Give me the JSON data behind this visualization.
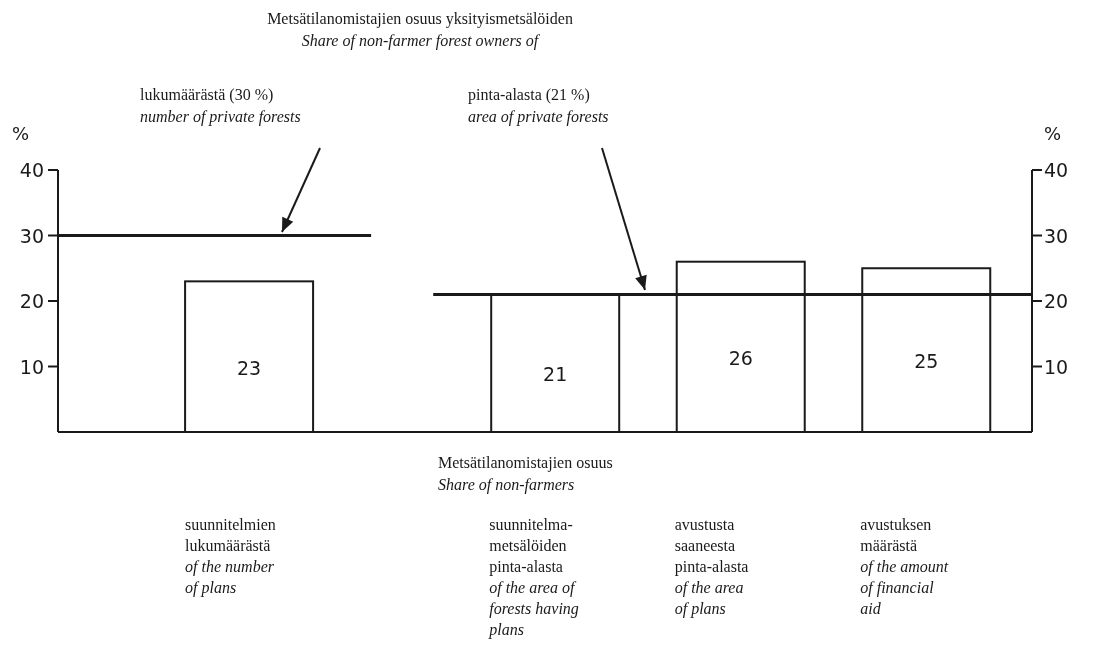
{
  "chart_data": {
    "type": "bar",
    "title": "Metsätilanomistajien osuus yksityismetsälöiden",
    "subtitle": "Share of non-farmer forest owners of",
    "xlabel": "Metsätilanomistajien osuus\n\nShare of non-farmers",
    "ylabel": "%",
    "y2label": "%",
    "categories": [
      "suunnitelmien\nlukumäärästä\n\nof the number\nof plans",
      "suunnitelma-\nmetsälöiden\npinta-alasta\n\nof the area of\nforests having\nplans",
      "avustusta\nsaaneesta\npinta-alasta\n\nof the area\nof plans",
      "avustuksen\nmäärästä\n\nof the amount\nof financial\naid"
    ],
    "values": [
      23,
      21,
      26,
      25
    ],
    "color": "#1a1a1a",
    "data_labels": true,
    "ylim": [
      0,
      40
    ],
    "yticks": [
      10,
      20,
      30,
      40
    ],
    "y2lim": [
      0,
      40
    ],
    "y2ticks": [
      10,
      20,
      30,
      40
    ],
    "annotations": [
      "lukumäärästä (30 %)\n\nnumber of private forests",
      "pinta-alasta (21 %)\n\narea of private forests"
    ],
    "ref_lines": [
      {
        "axis": "y",
        "value": 30
      },
      {
        "axis": "y2",
        "value": 21
      }
    ]
  }
}
